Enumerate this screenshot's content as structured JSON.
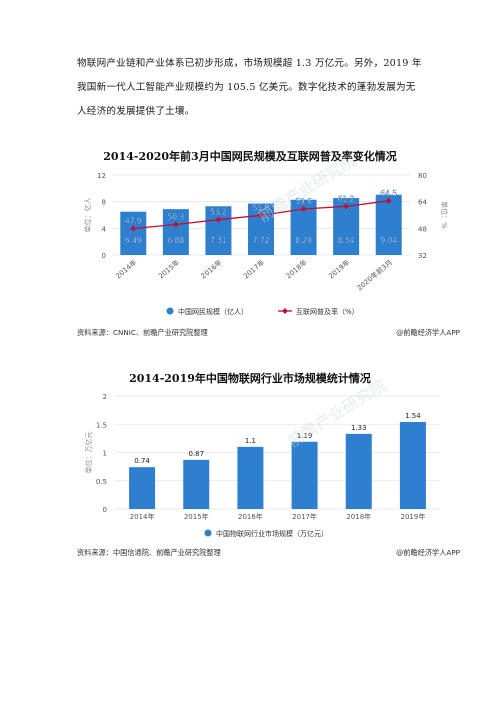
{
  "paragraph": {
    "line1": "物联网产业链和产业体系已初步形成，市场规模超 1.3 万亿元。另外，2019 年",
    "line2": "我国新一代人工智能产业规模约为 105.5 亿美元。数字化技术的蓬勃发展为无",
    "line3": "人经济的发展提供了土壤。"
  },
  "chart_data": [
    {
      "type": "bar+line",
      "title": "2014-2020年前3月中国网民规模及互联网普及率变化情况",
      "categories": [
        "2014年",
        "2015年",
        "2016年",
        "2017年",
        "2018年",
        "2019年",
        "2020年前3月"
      ],
      "series": [
        {
          "name": "中国网民规模（亿人）",
          "type": "bar",
          "axis": "left",
          "values": [
            6.49,
            6.88,
            7.31,
            7.72,
            8.29,
            8.54,
            9.04
          ]
        },
        {
          "name": "互联网普及率（%）",
          "type": "line",
          "axis": "right",
          "values": [
            47.9,
            50.3,
            53.2,
            55.8,
            59.6,
            61.2,
            64.5
          ]
        }
      ],
      "ylabel_left": "单位：亿人",
      "ylabel_right": "单位：%",
      "ylim_left": [
        0,
        12
      ],
      "yticks_left": [
        0,
        4,
        8,
        12
      ],
      "ylim_right": [
        32,
        80
      ],
      "yticks_right": [
        32,
        48,
        64,
        80
      ],
      "grid": true,
      "legend": "bottom",
      "colors": {
        "bar": "#2e7fd0",
        "line": "#c0102f"
      }
    },
    {
      "type": "bar",
      "title": "2014-2019年中国物联网行业市场规模统计情况",
      "categories": [
        "2014年",
        "2015年",
        "2016年",
        "2017年",
        "2018年",
        "2019年"
      ],
      "series": [
        {
          "name": "中国物联网行业市场规模（万亿元）",
          "values": [
            0.74,
            0.87,
            1.1,
            1.19,
            1.33,
            1.54
          ]
        }
      ],
      "value_labels": [
        "0.74",
        "0.87",
        "1.1",
        "1.19",
        "1.33",
        "1.54"
      ],
      "ylabel": "单位：万亿元",
      "ylim": [
        0,
        2
      ],
      "yticks": [
        "0",
        "0.5",
        "1",
        "1.5",
        "2"
      ],
      "grid": true,
      "legend": "bottom",
      "colors": {
        "bar": "#2e7fd0"
      }
    }
  ],
  "sources": {
    "chart1": "资料来源：CNNIC、前瞻产业研究院整理",
    "chart2": "资料来源：中国信通院、前瞻产业研究院整理",
    "credit": "@前瞻经济学人APP"
  },
  "watermark": "前瞻产业研究院"
}
